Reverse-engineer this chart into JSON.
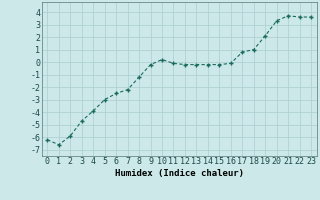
{
  "x": [
    0,
    1,
    2,
    3,
    4,
    5,
    6,
    7,
    8,
    9,
    10,
    11,
    12,
    13,
    14,
    15,
    16,
    17,
    18,
    19,
    20,
    21,
    22,
    23
  ],
  "y": [
    -6.2,
    -6.6,
    -5.9,
    -4.7,
    -3.9,
    -3.0,
    -2.5,
    -2.2,
    -1.2,
    -0.2,
    0.2,
    -0.1,
    -0.2,
    -0.2,
    -0.2,
    -0.2,
    -0.1,
    0.8,
    1.0,
    2.1,
    3.3,
    3.7,
    3.6,
    3.6
  ],
  "line_color": "#1a6b5e",
  "marker_color": "#1a6b5e",
  "background_color": "#cce8e8",
  "grid_color": "#aacece",
  "xlabel": "Humidex (Indice chaleur)",
  "xlim": [
    -0.5,
    23.5
  ],
  "ylim": [
    -7.5,
    4.8
  ],
  "yticks": [
    -7,
    -6,
    -5,
    -4,
    -3,
    -2,
    -1,
    0,
    1,
    2,
    3,
    4
  ],
  "xticks": [
    0,
    1,
    2,
    3,
    4,
    5,
    6,
    7,
    8,
    9,
    10,
    11,
    12,
    13,
    14,
    15,
    16,
    17,
    18,
    19,
    20,
    21,
    22,
    23
  ],
  "xlabel_fontsize": 6.5,
  "tick_fontsize": 6.0
}
